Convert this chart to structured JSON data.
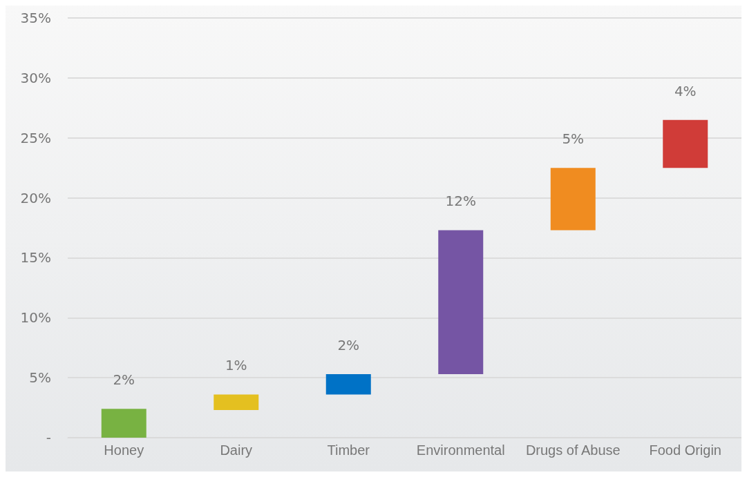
{
  "chart_data": {
    "type": "bar",
    "categories": [
      "Honey",
      "Dairy",
      "Timber",
      "Environmental",
      "Drugs of Abuse",
      "Food Origin"
    ],
    "values": [
      2.4,
      1.3,
      1.7,
      12.0,
      5.2,
      4.0
    ],
    "base": [
      0,
      2.3,
      3.6,
      5.3,
      17.3,
      22.5
    ],
    "colors": [
      "#78b242",
      "#e4c020",
      "#0072c6",
      "#7555a4",
      "#f08c20",
      "#d03c38"
    ],
    "value_labels": [
      "2%",
      "1%",
      "2%",
      "12%",
      "5%",
      "4%"
    ],
    "ylim": [
      0,
      35
    ],
    "yticks": [
      {
        "value": 0,
        "label": "-"
      },
      {
        "value": 5,
        "label": "5%"
      },
      {
        "value": 10,
        "label": "10%"
      },
      {
        "value": 15,
        "label": "15%"
      },
      {
        "value": 20,
        "label": "20%"
      },
      {
        "value": 25,
        "label": "25%"
      },
      {
        "value": 30,
        "label": "30%"
      },
      {
        "value": 35,
        "label": "35%"
      }
    ],
    "grid": "y"
  }
}
